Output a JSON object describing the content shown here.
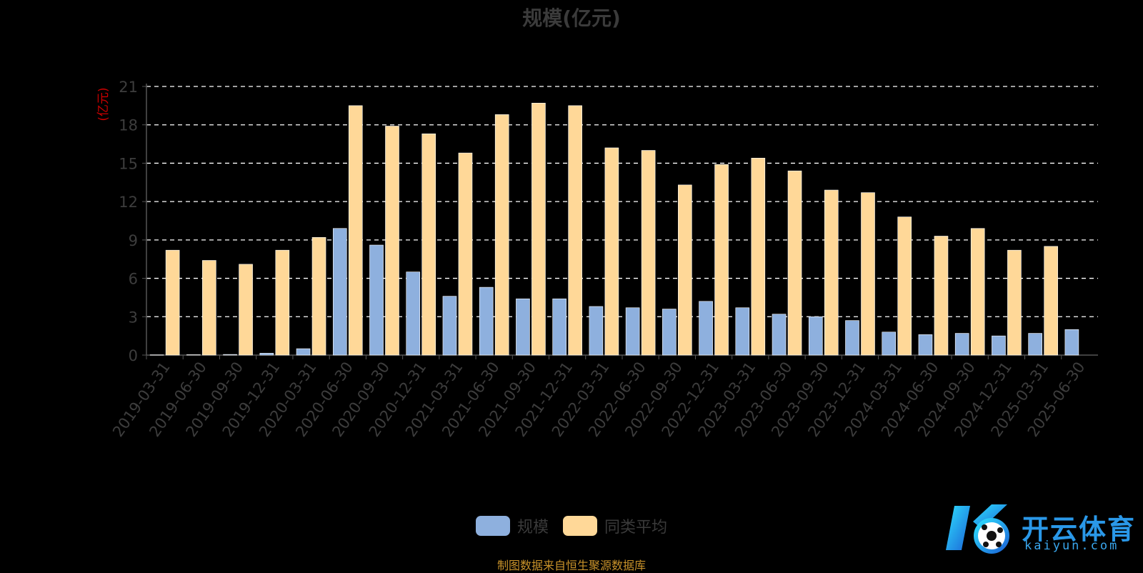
{
  "chart_data": {
    "type": "bar",
    "title": "规模(亿元)",
    "ylabel": "(亿元)",
    "xlabel": "",
    "ylim": [
      0,
      21
    ],
    "yticks": [
      0,
      3,
      6,
      9,
      12,
      15,
      18,
      21
    ],
    "grid": true,
    "legend_position": "bottom-center",
    "categories": [
      "2019-03-31",
      "2019-06-30",
      "2019-09-30",
      "2019-12-31",
      "2020-03-31",
      "2020-06-30",
      "2020-09-30",
      "2020-12-31",
      "2021-03-31",
      "2021-06-30",
      "2021-09-30",
      "2021-12-31",
      "2022-03-31",
      "2022-06-30",
      "2022-09-30",
      "2022-12-31",
      "2023-03-31",
      "2023-06-30",
      "2023-09-30",
      "2023-12-31",
      "2024-03-31",
      "2024-06-30",
      "2024-09-30",
      "2024-12-31",
      "2025-03-31",
      "2025-06-30"
    ],
    "series": [
      {
        "name": "规模",
        "color": "#8eb0de",
        "values": [
          0.02,
          0.03,
          0.05,
          0.15,
          0.5,
          9.9,
          8.6,
          6.5,
          4.6,
          5.3,
          4.4,
          4.4,
          3.8,
          3.7,
          3.6,
          4.2,
          3.7,
          3.2,
          3.0,
          2.7,
          1.8,
          1.6,
          1.7,
          1.5,
          1.7,
          2.0
        ]
      },
      {
        "name": "同类平均",
        "color": "#ffd898",
        "values": [
          8.2,
          7.4,
          7.1,
          8.2,
          9.2,
          19.5,
          17.9,
          17.3,
          15.8,
          18.8,
          19.7,
          19.5,
          16.2,
          16.0,
          13.3,
          14.9,
          15.4,
          14.4,
          12.9,
          12.7,
          10.8,
          9.3,
          9.9,
          8.2,
          8.5,
          null
        ]
      }
    ]
  },
  "colors": {
    "background": "#000000",
    "axis": "#555555",
    "grid": "#ffffff",
    "ylabel": "#cc0000",
    "tick_label": "#3d3d3d"
  },
  "source_note": "制图数据来自恒生聚源数据库",
  "logo": {
    "text": "开云体育",
    "sub": "kaiyun.com"
  }
}
